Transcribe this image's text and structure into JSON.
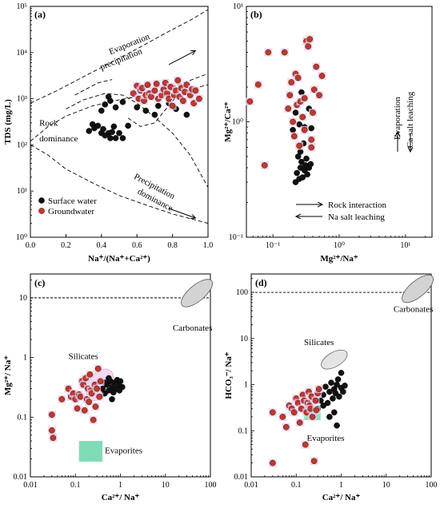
{
  "chart_data": [
    {
      "panel": "(a)",
      "type": "scatter",
      "xlabel": "Na⁺/(Na⁺+Ca²⁺)",
      "ylabel": "TDS (mg/L)",
      "xlim": [
        0,
        1
      ],
      "ylim_log10": [
        0,
        5
      ],
      "x_ticks": [
        "0.0",
        "0.2",
        "0.4",
        "0.6",
        "0.8",
        "1.0"
      ],
      "y_ticks": [
        "10⁰",
        "10¹",
        "10²",
        "10³",
        "10⁴",
        "10⁵"
      ],
      "annotations": [
        "Evaporation",
        "precipitation",
        "Rock",
        "dominance",
        "Precipitation",
        "dominance"
      ],
      "legend": [
        "Surface water",
        "Groundwater"
      ],
      "series": [
        {
          "name": "Surface water",
          "color": "#111111",
          "points": [
            [
              0.33,
              200
            ],
            [
              0.35,
              280
            ],
            [
              0.36,
              230
            ],
            [
              0.38,
              260
            ],
            [
              0.4,
              180
            ],
            [
              0.41,
              220
            ],
            [
              0.42,
              160
            ],
            [
              0.44,
              180
            ],
            [
              0.45,
              140
            ],
            [
              0.46,
              190
            ],
            [
              0.47,
              250
            ],
            [
              0.48,
              140
            ],
            [
              0.5,
              180
            ],
            [
              0.52,
              140
            ],
            [
              0.55,
              260
            ],
            [
              0.4,
              550
            ],
            [
              0.42,
              750
            ],
            [
              0.44,
              1100
            ],
            [
              0.45,
              900
            ],
            [
              0.48,
              650
            ],
            [
              0.52,
              850
            ],
            [
              0.6,
              650
            ],
            [
              0.65,
              550
            ],
            [
              0.7,
              450
            ],
            [
              0.72,
              700
            ],
            [
              0.78,
              800
            ],
            [
              0.82,
              600
            ],
            [
              0.88,
              450
            ]
          ]
        },
        {
          "name": "Groundwater",
          "color": "#c0392b",
          "points": [
            [
              0.58,
              1300
            ],
            [
              0.6,
              1900
            ],
            [
              0.61,
              1000
            ],
            [
              0.62,
              1500
            ],
            [
              0.63,
              1700
            ],
            [
              0.64,
              900
            ],
            [
              0.65,
              1200
            ],
            [
              0.66,
              2000
            ],
            [
              0.67,
              1300
            ],
            [
              0.68,
              1100
            ],
            [
              0.7,
              1500
            ],
            [
              0.71,
              2100
            ],
            [
              0.72,
              1000
            ],
            [
              0.74,
              1200
            ],
            [
              0.75,
              1600
            ],
            [
              0.76,
              2200
            ],
            [
              0.77,
              1300
            ],
            [
              0.78,
              1000
            ],
            [
              0.79,
              1800
            ],
            [
              0.8,
              700
            ],
            [
              0.81,
              1200
            ],
            [
              0.82,
              1500
            ],
            [
              0.83,
              2500
            ],
            [
              0.84,
              1100
            ],
            [
              0.85,
              1700
            ],
            [
              0.86,
              900
            ],
            [
              0.87,
              1400
            ],
            [
              0.88,
              2000
            ],
            [
              0.9,
              1200
            ],
            [
              0.91,
              1600
            ],
            [
              0.92,
              800
            ],
            [
              0.93,
              1500
            ],
            [
              0.95,
              1000
            ]
          ]
        }
      ]
    },
    {
      "panel": "(b)",
      "type": "scatter",
      "xlabel": "Mg²⁺/Na⁺",
      "ylabel": "Mg²⁺/Ca²⁺",
      "xlim_log10": [
        -1.4,
        1.4
      ],
      "ylim_log10": [
        -1,
        1
      ],
      "x_ticks": [
        "10⁻¹",
        "10⁰",
        "10¹"
      ],
      "y_ticks": [
        "10⁻¹",
        "10⁰",
        "10¹"
      ],
      "annotations": [
        "Evaporation",
        "Ca salt leaching",
        "Rock interaction",
        "Na salt leaching"
      ],
      "series": [
        {
          "name": "Surface water",
          "color": "#111111",
          "points": [
            [
              0.22,
              0.3
            ],
            [
              0.23,
              0.36
            ],
            [
              0.25,
              0.32
            ],
            [
              0.26,
              0.4
            ],
            [
              0.27,
              0.45
            ],
            [
              0.28,
              0.33
            ],
            [
              0.3,
              0.38
            ],
            [
              0.31,
              0.42
            ],
            [
              0.33,
              0.35
            ],
            [
              0.35,
              0.4
            ],
            [
              0.37,
              0.43
            ],
            [
              0.24,
              0.5
            ],
            [
              0.26,
              0.55
            ],
            [
              0.29,
              0.65
            ],
            [
              0.32,
              0.48
            ],
            [
              0.2,
              0.85
            ],
            [
              0.25,
              0.95
            ],
            [
              0.3,
              0.9
            ],
            [
              0.38,
              0.88
            ],
            [
              0.22,
              1.2
            ],
            [
              0.27,
              1.8
            ],
            [
              0.35,
              1.3
            ]
          ]
        },
        {
          "name": "Groundwater",
          "color": "#c0392b",
          "points": [
            [
              0.045,
              1.5
            ],
            [
              0.06,
              2.1
            ],
            [
              0.075,
              0.42
            ],
            [
              0.085,
              4.0
            ],
            [
              0.15,
              4.0
            ],
            [
              0.17,
              1.3
            ],
            [
              0.18,
              1.7
            ],
            [
              0.19,
              2.2
            ],
            [
              0.2,
              1.0
            ],
            [
              0.21,
              0.75
            ],
            [
              0.22,
              2.6
            ],
            [
              0.23,
              1.4
            ],
            [
              0.24,
              2.4
            ],
            [
              0.25,
              0.62
            ],
            [
              0.26,
              1.5
            ],
            [
              0.28,
              1.1
            ],
            [
              0.3,
              1.6
            ],
            [
              0.32,
              5.0
            ],
            [
              0.34,
              4.5
            ],
            [
              0.36,
              5.2
            ],
            [
              0.38,
              0.7
            ],
            [
              0.4,
              1.2
            ],
            [
              0.42,
              1.9
            ],
            [
              0.45,
              3.0
            ],
            [
              0.5,
              1.7
            ],
            [
              0.55,
              2.5
            ],
            [
              0.38,
              0.6
            ],
            [
              0.3,
              0.85
            ]
          ]
        }
      ]
    },
    {
      "panel": "(c)",
      "type": "scatter",
      "xlabel": "Ca²⁺/ Na⁺",
      "ylabel": "Mg²⁺/ Na⁺",
      "xlim_log10": [
        -2,
        2
      ],
      "ylim_log10": [
        -2,
        1.4
      ],
      "x_ticks": [
        "0.01",
        "0.1",
        "1",
        "10",
        "100"
      ],
      "y_ticks": [
        "0.01",
        "0.1",
        "1",
        "10"
      ],
      "reference_line_y": 10,
      "annotations": [
        "Carbonates",
        "Silicates",
        "Evaporites"
      ],
      "series": [
        {
          "name": "Surface water",
          "color": "#111111",
          "points": [
            [
              0.35,
              0.22
            ],
            [
              0.4,
              0.3
            ],
            [
              0.45,
              0.25
            ],
            [
              0.5,
              0.35
            ],
            [
              0.55,
              0.28
            ],
            [
              0.6,
              0.4
            ],
            [
              0.65,
              0.32
            ],
            [
              0.7,
              0.26
            ],
            [
              0.75,
              0.38
            ],
            [
              0.8,
              0.3
            ],
            [
              0.85,
              0.42
            ],
            [
              0.9,
              0.35
            ],
            [
              1.0,
              0.4
            ],
            [
              1.1,
              0.32
            ],
            [
              0.65,
              0.2
            ],
            [
              0.45,
              0.38
            ],
            [
              0.55,
              0.45
            ],
            [
              0.95,
              0.28
            ]
          ]
        },
        {
          "name": "Groundwater",
          "color": "#c0392b",
          "points": [
            [
              0.03,
              0.11
            ],
            [
              0.03,
              0.06
            ],
            [
              0.032,
              0.045
            ],
            [
              0.05,
              0.2
            ],
            [
              0.07,
              0.3
            ],
            [
              0.08,
              0.22
            ],
            [
              0.09,
              0.25
            ],
            [
              0.1,
              0.2
            ],
            [
              0.11,
              0.14
            ],
            [
              0.12,
              0.24
            ],
            [
              0.13,
              0.22
            ],
            [
              0.14,
              0.4
            ],
            [
              0.15,
              0.35
            ],
            [
              0.16,
              0.13
            ],
            [
              0.17,
              0.45
            ],
            [
              0.18,
              0.2
            ],
            [
              0.19,
              0.3
            ],
            [
              0.2,
              0.18
            ],
            [
              0.21,
              0.52
            ],
            [
              0.22,
              0.28
            ],
            [
              0.23,
              0.25
            ],
            [
              0.25,
              0.09
            ],
            [
              0.27,
              0.35
            ],
            [
              0.28,
              0.15
            ],
            [
              0.3,
              0.3
            ],
            [
              0.32,
              0.65
            ],
            [
              0.34,
              0.22
            ],
            [
              0.36,
              0.4
            ]
          ]
        }
      ]
    },
    {
      "panel": "(d)",
      "type": "scatter",
      "xlabel": "Ca²⁺/ Na⁺",
      "ylabel": "HCO₃⁻/ Na⁺",
      "xlim_log10": [
        -2,
        2
      ],
      "ylim_log10": [
        -2,
        2.4
      ],
      "x_ticks": [
        "0.01",
        "0.1",
        "1",
        "10",
        "100"
      ],
      "y_ticks": [
        "0.01",
        "0.1",
        "1",
        "10",
        "100"
      ],
      "reference_line_y": 100,
      "annotations": [
        "Carbonates",
        "Silicates",
        "Evaporites"
      ],
      "series": [
        {
          "name": "Surface water",
          "color": "#111111",
          "points": [
            [
              0.3,
              0.3
            ],
            [
              0.35,
              0.45
            ],
            [
              0.4,
              0.6
            ],
            [
              0.45,
              0.9
            ],
            [
              0.5,
              0.4
            ],
            [
              0.55,
              0.7
            ],
            [
              0.6,
              1.1
            ],
            [
              0.65,
              0.5
            ],
            [
              0.7,
              0.8
            ],
            [
              0.75,
              0.65
            ],
            [
              0.8,
              1.0
            ],
            [
              0.85,
              1.3
            ],
            [
              0.9,
              0.55
            ],
            [
              1.0,
              0.85
            ],
            [
              1.1,
              0.7
            ],
            [
              1.2,
              0.95
            ],
            [
              0.7,
              0.25
            ],
            [
              0.8,
              0.13
            ],
            [
              1.0,
              1.8
            ],
            [
              0.4,
              0.35
            ],
            [
              0.55,
              0.2
            ]
          ]
        },
        {
          "name": "Groundwater",
          "color": "#c0392b",
          "points": [
            [
              0.03,
              0.25
            ],
            [
              0.03,
              0.02
            ],
            [
              0.05,
              0.2
            ],
            [
              0.06,
              0.12
            ],
            [
              0.07,
              0.35
            ],
            [
              0.08,
              0.3
            ],
            [
              0.09,
              0.25
            ],
            [
              0.1,
              0.5
            ],
            [
              0.11,
              0.4
            ],
            [
              0.12,
              0.15
            ],
            [
              0.13,
              0.3
            ],
            [
              0.14,
              0.6
            ],
            [
              0.15,
              0.45
            ],
            [
              0.16,
              0.05
            ],
            [
              0.17,
              0.25
            ],
            [
              0.18,
              0.4
            ],
            [
              0.19,
              0.7
            ],
            [
              0.2,
              0.35
            ],
            [
              0.21,
              0.3
            ],
            [
              0.22,
              0.55
            ],
            [
              0.23,
              0.2
            ],
            [
              0.25,
              0.022
            ],
            [
              0.27,
              0.45
            ],
            [
              0.3,
              0.65
            ],
            [
              0.32,
              0.8
            ],
            [
              0.28,
              0.28
            ]
          ]
        }
      ]
    }
  ]
}
